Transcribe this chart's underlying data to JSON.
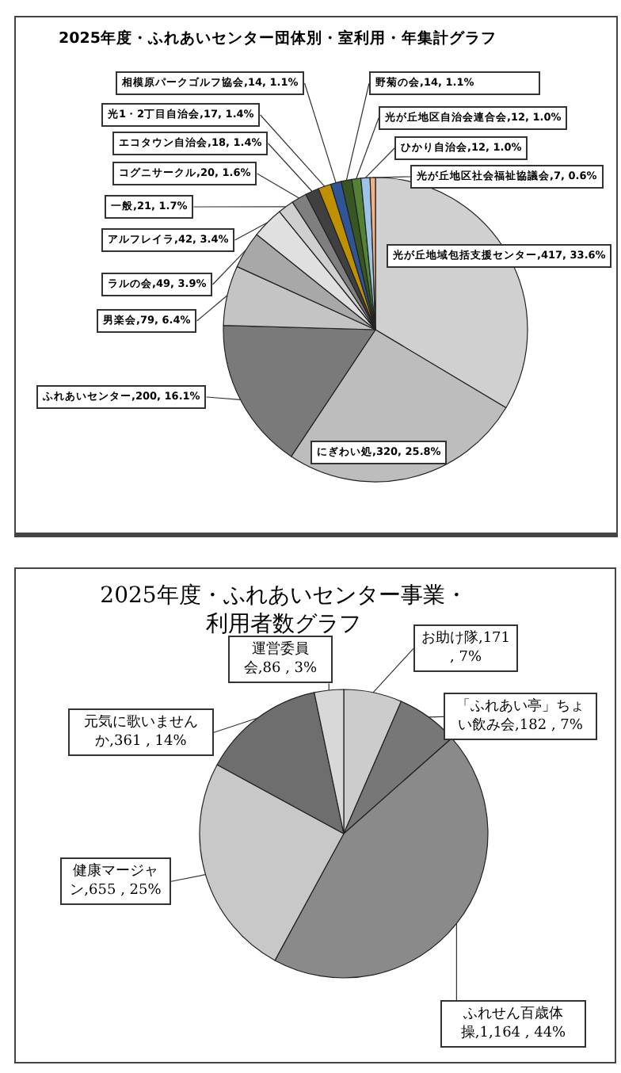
{
  "chart_data": [
    {
      "type": "pie",
      "title": "2025年度・ふれあいセンター団体別・室利用・年集計グラフ",
      "categories": [
        "光が丘地域包括支援センター",
        "にぎわい処",
        "ふれあいセンター",
        "男楽会",
        "ラルの会",
        "アルフレイラ",
        "一般",
        "コグニサークル",
        "エコタウン自治会",
        "光1・2丁目自治会",
        "相模原パークゴルフ協会",
        "野菊の会",
        "光が丘地区自治会連合会",
        "ひかり自治会",
        "光が丘地区社会福祉協議会"
      ],
      "values": [
        417,
        320,
        200,
        79,
        49,
        42,
        21,
        20,
        18,
        17,
        14,
        14,
        12,
        12,
        7
      ],
      "value_labels": [
        "417, 33.6%",
        "320, 25.8%",
        "200, 16.1%",
        "79, 6.4%",
        "49, 3.9%",
        "42, 3.4%",
        "21, 1.7%",
        "20, 1.6%",
        "18, 1.4%",
        "17, 1.4%",
        "14, 1.1%",
        "14, 1.1%",
        "12, 1.0%",
        "12, 1.0%",
        "7, 0.6%"
      ],
      "colors": [
        "#d0d0d0",
        "#bdbdbd",
        "#7a7a7a",
        "#c4c4c4",
        "#a8a8a8",
        "#e0e0e0",
        "#cfcfcf",
        "#7f7f7f",
        "#404040",
        "#bf9000",
        "#2f5597",
        "#375623",
        "#548235",
        "#9dc3e6",
        "#f4b183"
      ]
    },
    {
      "type": "pie",
      "title": "2025年度・ふれあいセンター事業・利用者数グラフ",
      "categories": [
        "お助け隊",
        "「ふれあい亭」ちょい飲み会",
        "ふれせん百歳体操",
        "健康マージャン",
        "元気に歌いませんか",
        "運営委員会"
      ],
      "values": [
        171,
        182,
        1164,
        655,
        361,
        86
      ],
      "value_labels": [
        "171 , 7%",
        "182 , 7%",
        "1,164 , 44%",
        "655 , 25%",
        "361 , 14%",
        "86 , 3%"
      ],
      "colors": [
        "#cccccc",
        "#777777",
        "#8a8a8a",
        "#c8c8c8",
        "#6e6e6e",
        "#d8d8d8"
      ]
    }
  ]
}
